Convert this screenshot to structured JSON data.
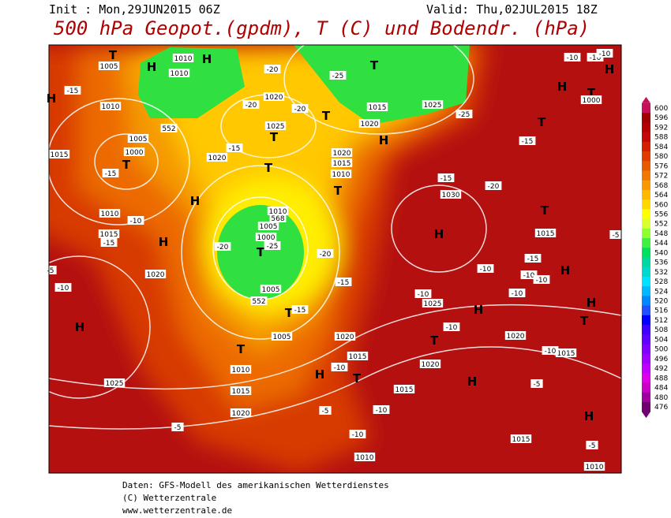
{
  "header": {
    "init": "Init : Mon,29JUN2015 06Z",
    "valid": "Valid: Thu,02JUL2015 18Z",
    "title": "500 hPa Geopot.(gpdm), T (C) und Bodendr. (hPa)"
  },
  "map": {
    "labels": [
      "H",
      "H",
      "H",
      "H",
      "H",
      "H",
      "H",
      "H",
      "H",
      "H",
      "H",
      "H",
      "H",
      "H",
      "H",
      "H",
      "T",
      "T",
      "T",
      "T",
      "T",
      "T",
      "T",
      "T",
      "T",
      "T",
      "T",
      "T",
      "T",
      "T",
      "T",
      "T",
      "1010",
      "1005",
      "1010",
      "1010",
      "1005",
      "1000",
      "1015",
      "1020",
      "1025",
      "1020",
      "1020",
      "1015",
      "1010",
      "1015",
      "1025",
      "1020",
      "1030",
      "1010",
      "1005",
      "1000",
      "1005",
      "1005",
      "1010",
      "1015",
      "1020",
      "1025",
      "1020",
      "1015",
      "1010",
      "1015",
      "1025",
      "1020",
      "1015",
      "1020",
      "1015",
      "1015",
      "1010",
      "1015",
      "1010",
      "1000",
      "1020",
      "-15",
      "-20",
      "-20",
      "-20",
      "-25",
      "-15",
      "-15",
      "-10",
      "-15",
      "-10",
      "-20",
      "-25",
      "-20",
      "-15",
      "-15",
      "-25",
      "-15",
      "-15",
      "-20",
      "-15",
      "-10",
      "-10",
      "-10",
      "-10",
      "-10",
      "-10",
      "-10",
      "-10",
      "-10",
      "-5",
      "-5",
      "-5",
      "-5",
      "-10",
      "-10",
      "-10",
      "-10",
      "-5",
      "-5",
      "552",
      "552",
      "568"
    ]
  },
  "legend": {
    "levels": [
      600,
      596,
      592,
      588,
      584,
      580,
      576,
      572,
      568,
      564,
      560,
      556,
      552,
      548,
      544,
      540,
      536,
      532,
      528,
      524,
      520,
      516,
      512,
      508,
      504,
      500,
      496,
      492,
      488,
      484,
      480,
      476
    ],
    "colors": [
      "#c8105a",
      "#a00000",
      "#b40000",
      "#c40808",
      "#d42000",
      "#e03c00",
      "#e85a00",
      "#f07800",
      "#f89800",
      "#ffb800",
      "#ffd800",
      "#ffff00",
      "#d8ff30",
      "#90ff30",
      "#40f040",
      "#00e060",
      "#00d8a0",
      "#00d8d0",
      "#00e0ff",
      "#00b8ff",
      "#0088ff",
      "#2050ff",
      "#0000ff",
      "#4000ff",
      "#6000ff",
      "#8000ff",
      "#a000ff",
      "#c000ff",
      "#e000e8",
      "#c800c8",
      "#a000a0",
      "#700070"
    ]
  },
  "footer": {
    "lines": [
      "Daten: GFS-Modell des amerikanischen Wetterdienstes",
      "(C) Wetterzentrale",
      "www.wetterzentrale.de"
    ]
  }
}
